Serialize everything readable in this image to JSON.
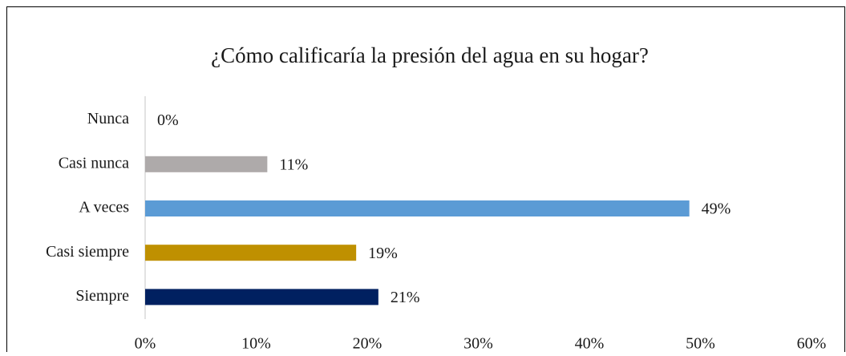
{
  "chart_data": {
    "type": "barh",
    "title": "¿Cómo calificaría la presión del agua en su hogar?",
    "categories": [
      "Nunca",
      "Casi nunca",
      "A veces",
      "Casi siempre",
      "Siempre"
    ],
    "values": [
      0,
      11,
      49,
      19,
      21
    ],
    "value_labels": [
      "0%",
      "11%",
      "49%",
      "19%",
      "21%"
    ],
    "colors": [
      "#aeaaaa",
      "#aeaaaa",
      "#5b9bd5",
      "#bf9000",
      "#002060"
    ],
    "xlim": [
      0,
      60
    ],
    "xticks": [
      {
        "value": 0,
        "label": "0%"
      },
      {
        "value": 10,
        "label": "10%"
      },
      {
        "value": 20,
        "label": "20%"
      },
      {
        "value": 30,
        "label": "30%"
      },
      {
        "value": 40,
        "label": "40%"
      },
      {
        "value": 50,
        "label": "50%"
      },
      {
        "value": 60,
        "label": "60%"
      }
    ],
    "grid": false
  }
}
